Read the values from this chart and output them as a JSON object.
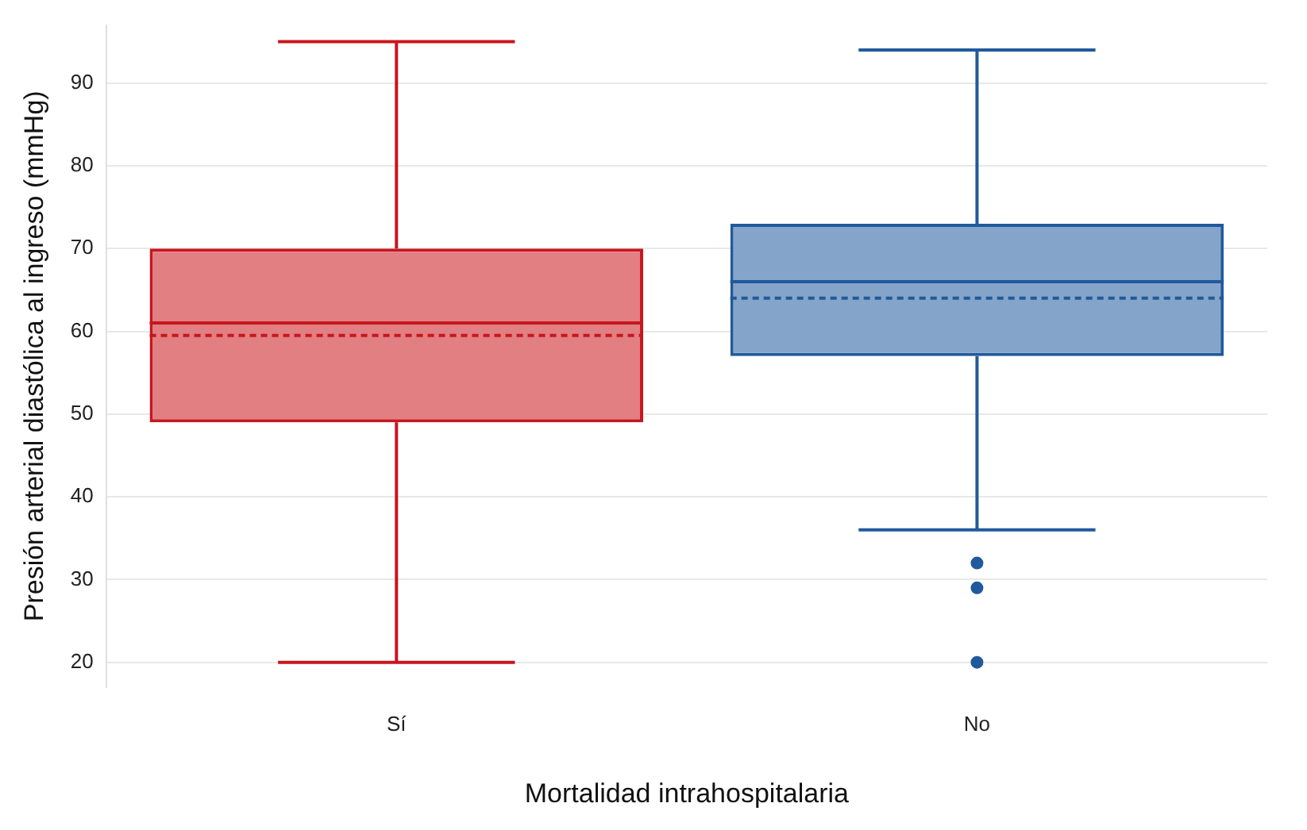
{
  "chart_data": {
    "type": "box",
    "xlabel": "Mortalidad intrahospitalaria",
    "ylabel": "Presión arterial diastólica al ingreso (mmHg)",
    "categories": [
      "Sí",
      "No"
    ],
    "colors": [
      "#c8161d",
      "#205a9c"
    ],
    "boxes": [
      {
        "low": 20,
        "q1": 49,
        "median": 61,
        "q3": 70,
        "high": 95,
        "mean": 59.5
      },
      {
        "low": 36,
        "q1": 57,
        "median": 66,
        "q3": 73,
        "high": 94,
        "mean": 64,
        "outliers": [
          32,
          29,
          20
        ]
      }
    ],
    "ylim": [
      17,
      97
    ],
    "yticks": [
      20,
      30,
      40,
      50,
      60,
      70,
      80,
      90
    ],
    "grid": "y",
    "legend": false
  }
}
